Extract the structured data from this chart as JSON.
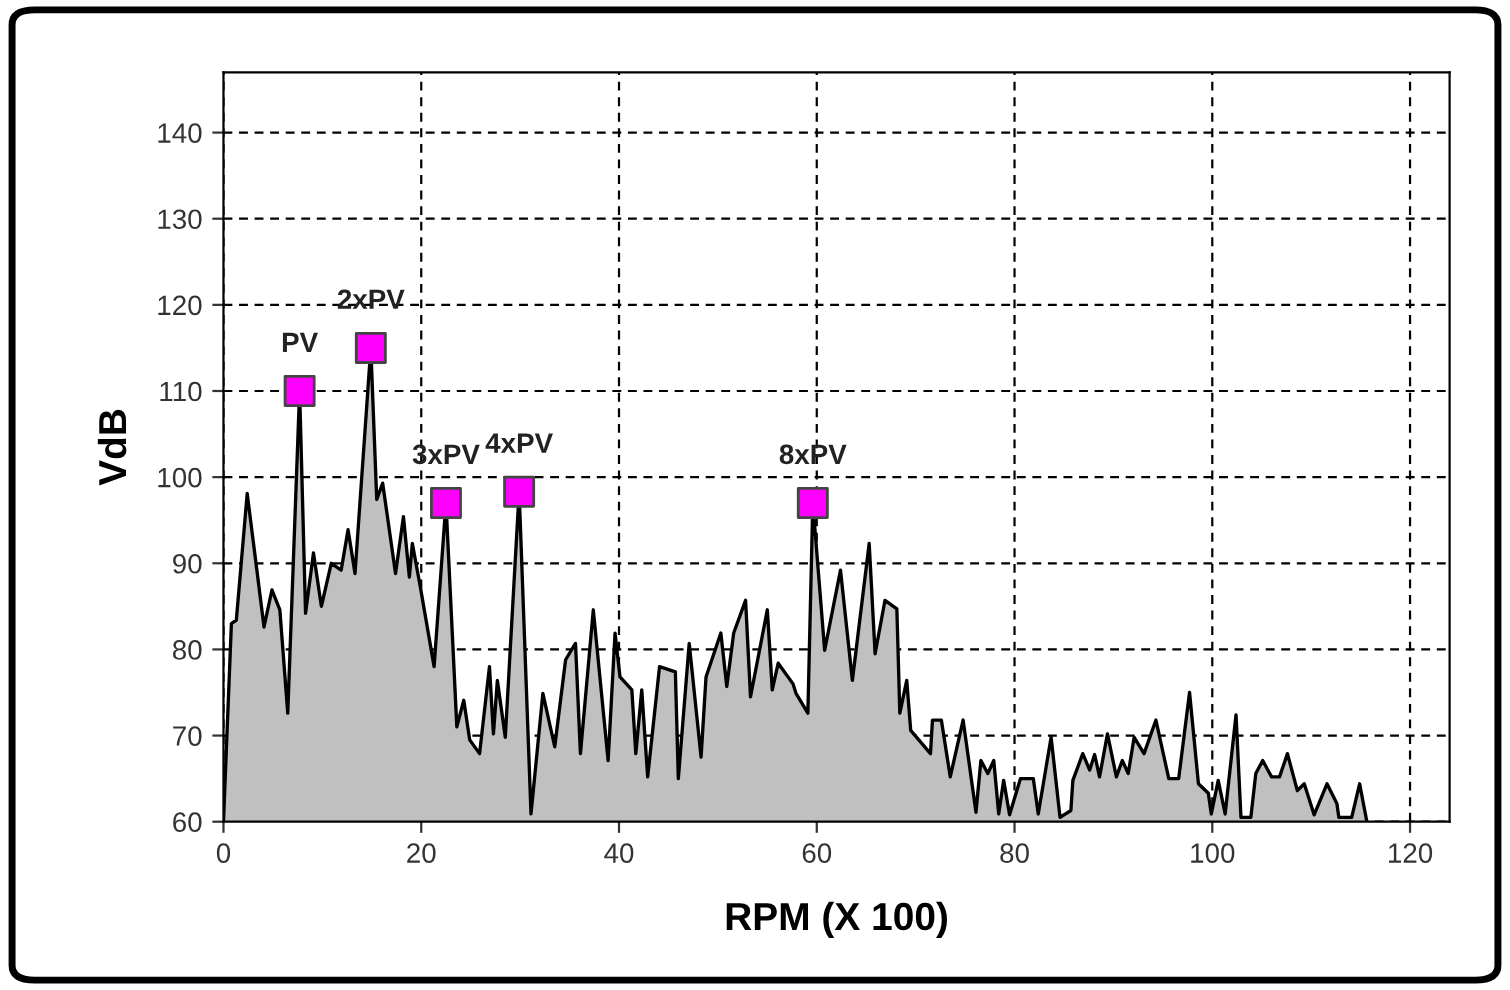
{
  "chart_data": {
    "type": "area",
    "xlabel": "RPM (X 100)",
    "ylabel": "VdB",
    "xlim": [
      0,
      124
    ],
    "ylim": [
      60,
      147
    ],
    "xticks": [
      0,
      20,
      40,
      60,
      80,
      100,
      120
    ],
    "yticks": [
      60,
      70,
      80,
      90,
      100,
      110,
      120,
      130,
      140
    ],
    "grid": true,
    "legend": false,
    "series": [
      {
        "color": "#c0c0c0",
        "x": [
          0,
          0.8,
          1.3,
          2.4,
          4.1,
          4.9,
          5.7,
          6.5,
          7.7,
          8.3,
          9.1,
          9.9,
          10.9,
          11.9,
          12.6,
          13.3,
          14.9,
          15.5,
          16.1,
          17.4,
          18.2,
          18.8,
          19.1,
          19.9,
          21.3,
          22.5,
          23.6,
          24.3,
          24.9,
          25.9,
          26.9,
          27.3,
          27.7,
          28.5,
          29.9,
          31.1,
          32.3,
          33.5,
          34.6,
          35.6,
          36.1,
          37.4,
          38.9,
          39.6,
          40.1,
          41.3,
          41.7,
          42.3,
          42.9,
          44.1,
          45.7,
          46,
          47.1,
          48.3,
          48.8,
          50.3,
          50.9,
          51.6,
          52.8,
          53.3,
          55,
          55.5,
          56.1,
          57.6,
          57.9,
          59.1,
          59.6,
          60.8,
          62.4,
          63.6,
          65.3,
          65.9,
          66.9,
          68.1,
          68.4,
          69.1,
          69.5,
          71.5,
          71.7,
          72.6,
          73.5,
          74.8,
          76.1,
          76.6,
          77.3,
          77.9,
          78.4,
          78.9,
          79.5,
          80.6,
          81.9,
          82.4,
          83.7,
          84.6,
          85.7,
          85.9,
          86.9,
          87.6,
          88.1,
          88.6,
          89.4,
          90.3,
          90.9,
          91.5,
          92.1,
          93.1,
          94.3,
          95.6,
          96.6,
          97.7,
          98.6,
          99.6,
          99.9,
          100.6,
          101.3,
          102.4,
          102.9,
          103.9,
          104.4,
          105.1,
          106,
          106.8,
          107.6,
          108.6,
          109.3,
          110.3,
          111.6,
          112.6,
          112.8,
          114.1,
          114.9,
          115.6
        ],
        "values": [
          60,
          83,
          83.4,
          98.1,
          82.6,
          86.9,
          84.6,
          72.6,
          110,
          84.2,
          91.2,
          85,
          90,
          89.2,
          93.9,
          88.8,
          115,
          97.4,
          99.3,
          88.8,
          95.4,
          88.4,
          92.3,
          87.3,
          78,
          97,
          71,
          74.1,
          69.5,
          67.9,
          78,
          70.2,
          76.4,
          69.8,
          98.3,
          60.9,
          74.9,
          68.7,
          78.8,
          80.7,
          67.9,
          84.6,
          67.1,
          81.9,
          76.8,
          75.3,
          67.9,
          75.3,
          65.2,
          78,
          77.4,
          65,
          80.7,
          67.5,
          76.8,
          81.9,
          75.7,
          81.9,
          85.7,
          74.5,
          84.6,
          75.3,
          78.4,
          76,
          74.9,
          72.6,
          97,
          79.9,
          89.2,
          76.4,
          92.3,
          79.5,
          85.7,
          84.7,
          72.6,
          76.4,
          70.6,
          67.9,
          71.8,
          71.8,
          65.2,
          71.8,
          61.1,
          67.1,
          65.6,
          67.1,
          60.9,
          64.8,
          60.8,
          65,
          65,
          60.9,
          69.8,
          60.5,
          61.3,
          64.8,
          67.9,
          66,
          67.8,
          65.2,
          70.2,
          65.2,
          67.1,
          65.6,
          69.8,
          67.9,
          71.8,
          65,
          65,
          75,
          64.4,
          63.3,
          60.9,
          64.8,
          60.9,
          72.4,
          60.5,
          60.5,
          65.6,
          67.1,
          65.2,
          65.2,
          67.9,
          63.6,
          64.4,
          60.8,
          64.4,
          62.1,
          60.5,
          60.5,
          64.4,
          60.2
        ]
      },
      {
        "type": "scatter",
        "color": "#ff00ff",
        "marker": "square",
        "x": [
          7.7,
          14.9,
          22.5,
          29.9,
          59.6
        ],
        "values": [
          110,
          115,
          97,
          98.3,
          97
        ]
      }
    ],
    "annotations": [
      {
        "text": "PV",
        "x": 7.7,
        "y": 110
      },
      {
        "text": "2xPV",
        "x": 14.9,
        "y": 115
      },
      {
        "text": "3xPV",
        "x": 22.5,
        "y": 97
      },
      {
        "text": "4xPV",
        "x": 29.9,
        "y": 98.3
      },
      {
        "text": "8xPV",
        "x": 59.6,
        "y": 97
      }
    ]
  }
}
